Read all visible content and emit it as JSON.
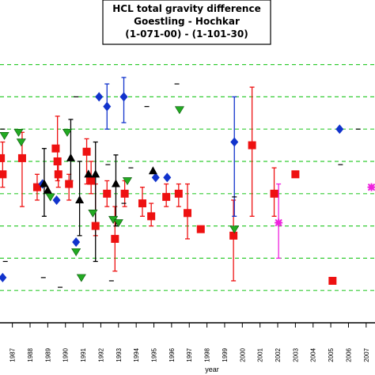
{
  "chart_data": {
    "type": "scatter",
    "title_lines": [
      "HCL total gravity difference",
      "Goestling - Hochkar",
      "(1-071-00) - (1-101-30)"
    ],
    "xlabel": "year",
    "x_tick_labels": [
      "1987",
      "1988",
      "1989",
      "1990",
      "1991",
      "1992",
      "1993",
      "1994",
      "1995",
      "1996",
      "1997",
      "1998",
      "1999",
      "2000",
      "2001",
      "2002",
      "2003",
      "2004",
      "2005",
      "2006",
      "2007"
    ],
    "xlim": [
      1986.3,
      2007.5
    ],
    "ylim": [
      0,
      10
    ],
    "gridlines_y": [
      1,
      2,
      3,
      4,
      5,
      6,
      7,
      8
    ],
    "grid_color": "#33cc33",
    "series": [
      {
        "marker": "square",
        "color": "#ee1111",
        "points": [
          {
            "x": 1986.35,
            "y": 5.1
          },
          {
            "x": 1986.45,
            "y": 4.6,
            "err": [
              4.2,
              5.6
            ]
          },
          {
            "x": 1987.55,
            "y": 5.1,
            "err": [
              3.6,
              5.9
            ]
          },
          {
            "x": 1988.4,
            "y": 4.2,
            "err": [
              3.8,
              4.6
            ]
          },
          {
            "x": 1989.45,
            "y": 5.4
          },
          {
            "x": 1989.55,
            "y": 5.0,
            "err": [
              4.4,
              6.4
            ]
          },
          {
            "x": 1989.6,
            "y": 4.6,
            "err": [
              4.2,
              5.1
            ]
          },
          {
            "x": 1990.2,
            "y": 4.3,
            "err": [
              3.8,
              4.6
            ]
          },
          {
            "x": 1991.2,
            "y": 5.3,
            "err": [
              4.3,
              5.7
            ]
          },
          {
            "x": 1991.45,
            "y": 4.4,
            "err": [
              4.0,
              5.0
            ]
          },
          {
            "x": 1991.7,
            "y": 3.0,
            "err": [
              2.7,
              4.3
            ]
          },
          {
            "x": 1992.35,
            "y": 4.0,
            "err": [
              3.6,
              4.4
            ]
          },
          {
            "x": 1992.8,
            "y": 2.6,
            "err": [
              1.6,
              3.6
            ]
          },
          {
            "x": 1993.35,
            "y": 4.0,
            "err": [
              3.6,
              4.4
            ]
          },
          {
            "x": 1994.35,
            "y": 3.7,
            "err": [
              3.3,
              4.2
            ]
          },
          {
            "x": 1994.85,
            "y": 3.3,
            "err": [
              3.0,
              3.7
            ]
          },
          {
            "x": 1995.7,
            "y": 3.9,
            "err": [
              3.6,
              4.3
            ]
          },
          {
            "x": 1996.4,
            "y": 4.0,
            "err": [
              3.6,
              4.3
            ]
          },
          {
            "x": 1996.9,
            "y": 3.4,
            "err": [
              2.6,
              4.3
            ]
          },
          {
            "x": 1997.65,
            "y": 2.9
          },
          {
            "x": 1999.5,
            "y": 2.7,
            "err": [
              1.3,
              3.8
            ]
          },
          {
            "x": 2000.55,
            "y": 5.5,
            "err": [
              3.3,
              7.3
            ]
          },
          {
            "x": 2001.8,
            "y": 4.0,
            "err": [
              3.3,
              4.8
            ]
          },
          {
            "x": 2003.0,
            "y": 4.6
          },
          {
            "x": 2005.1,
            "y": 1.3
          }
        ]
      },
      {
        "marker": "diamond",
        "color": "#1133cc",
        "points": [
          {
            "x": 1986.45,
            "y": 1.4
          },
          {
            "x": 1988.7,
            "y": 4.3
          },
          {
            "x": 1989.5,
            "y": 3.8
          },
          {
            "x": 1990.6,
            "y": 2.5
          },
          {
            "x": 1991.9,
            "y": 7.0
          },
          {
            "x": 1992.35,
            "y": 6.7,
            "err": [
              6.0,
              7.4
            ]
          },
          {
            "x": 1993.3,
            "y": 7.0,
            "err": [
              6.2,
              7.6
            ]
          },
          {
            "x": 1995.1,
            "y": 4.5
          },
          {
            "x": 1995.75,
            "y": 4.5
          },
          {
            "x": 1999.55,
            "y": 5.6,
            "err": [
              3.3,
              7.0
            ]
          },
          {
            "x": 2005.5,
            "y": 6.0
          }
        ]
      },
      {
        "marker": "triangle-up",
        "color": "#000000",
        "points": [
          {
            "x": 1988.8,
            "y": 4.3,
            "err": [
              3.3,
              5.4
            ]
          },
          {
            "x": 1989.0,
            "y": 4.1
          },
          {
            "x": 1990.3,
            "y": 5.1,
            "err": [
              4.4,
              6.3
            ]
          },
          {
            "x": 1990.8,
            "y": 3.8,
            "err": [
              2.7,
              5.0
            ]
          },
          {
            "x": 1991.3,
            "y": 4.6
          },
          {
            "x": 1991.7,
            "y": 4.6,
            "err": [
              1.9,
              5.6
            ]
          },
          {
            "x": 1992.85,
            "y": 4.3,
            "err": [
              3.0,
              5.2
            ]
          },
          {
            "x": 1994.95,
            "y": 4.7
          }
        ]
      },
      {
        "marker": "triangle-down",
        "color": "#22aa22",
        "points": [
          {
            "x": 1986.55,
            "y": 5.8
          },
          {
            "x": 1987.35,
            "y": 5.9
          },
          {
            "x": 1987.5,
            "y": 5.6
          },
          {
            "x": 1989.15,
            "y": 3.9
          },
          {
            "x": 1990.1,
            "y": 5.9
          },
          {
            "x": 1990.6,
            "y": 2.2
          },
          {
            "x": 1990.9,
            "y": 1.4
          },
          {
            "x": 1991.55,
            "y": 3.4
          },
          {
            "x": 1992.7,
            "y": 3.2
          },
          {
            "x": 1993.0,
            "y": 3.1
          },
          {
            "x": 1993.5,
            "y": 4.4
          },
          {
            "x": 1996.45,
            "y": 6.6
          },
          {
            "x": 1999.55,
            "y": 2.9
          }
        ]
      },
      {
        "marker": "asterisk",
        "color": "#ee22dd",
        "points": [
          {
            "x": 2002.05,
            "y": 3.1,
            "err": [
              2.0,
              4.3
            ]
          },
          {
            "x": 2007.3,
            "y": 4.2
          }
        ]
      }
    ],
    "dashes": [
      {
        "x": 1986.45,
        "y": 6.0
      },
      {
        "x": 1986.6,
        "y": 1.9
      },
      {
        "x": 1988.75,
        "y": 1.4
      },
      {
        "x": 1989.7,
        "y": 1.1
      },
      {
        "x": 1990.6,
        "y": 7.0
      },
      {
        "x": 1992.4,
        "y": 4.9
      },
      {
        "x": 1993.7,
        "y": 4.8
      },
      {
        "x": 1994.6,
        "y": 6.7
      },
      {
        "x": 1996.3,
        "y": 7.4
      },
      {
        "x": 1999.55,
        "y": 3.9
      },
      {
        "x": 2005.55,
        "y": 4.9
      },
      {
        "x": 2006.55,
        "y": 6.0
      },
      {
        "x": 1992.6,
        "y": 1.3
      },
      {
        "x": 1993.3,
        "y": 3.7
      }
    ]
  }
}
